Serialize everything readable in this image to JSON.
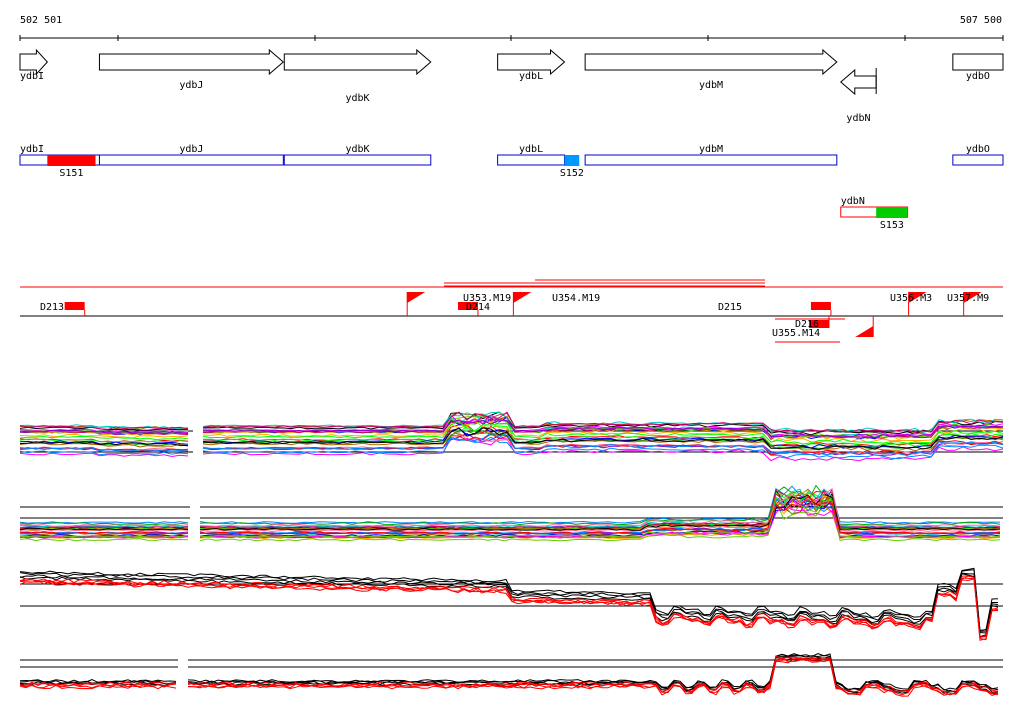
{
  "ruler": {
    "start_label": "502 501",
    "end_label": "507 500",
    "start": 502501,
    "end": 507500
  },
  "colors": {
    "gene_outline": "#000000",
    "box_outline": "#0000cc",
    "fill_red": "#ff0000",
    "fill_blue": "#0099ff",
    "fill_green": "#00cc00",
    "line_red": "#ff0000"
  },
  "genes": [
    {
      "name": "ydbI",
      "strand": "+",
      "start": 502501,
      "end": 502640
    },
    {
      "name": "ydbJ",
      "strand": "+",
      "start": 502905,
      "end": 503840
    },
    {
      "name": "ydbK",
      "strand": "+",
      "start": 503845,
      "end": 504590
    },
    {
      "name": "ydbL",
      "strand": "+",
      "start": 504930,
      "end": 505270
    },
    {
      "name": "ydbM",
      "strand": "+",
      "start": 505375,
      "end": 506655
    },
    {
      "name": "ydbN",
      "strand": "-",
      "start": 506675,
      "end": 506855
    },
    {
      "name": "ydbO",
      "strand": "+",
      "start": 507245,
      "end": 507500
    }
  ],
  "boxes": [
    {
      "name": "ydbI",
      "row": 0,
      "start": 502501,
      "end": 502905
    },
    {
      "name": "ydbJ",
      "row": 0,
      "start": 502905,
      "end": 503840
    },
    {
      "name": "ydbK",
      "row": 0,
      "start": 503845,
      "end": 504590
    },
    {
      "name": "ydbL",
      "row": 0,
      "start": 504930,
      "end": 505270
    },
    {
      "name": "ydbM",
      "row": 0,
      "start": 505375,
      "end": 506655
    },
    {
      "name": "ydbO",
      "row": 0,
      "start": 507245,
      "end": 507500
    },
    {
      "name": "ydbN",
      "row": 1,
      "start": 506675,
      "end": 507015
    }
  ],
  "segments": [
    {
      "name": "S151",
      "row": 0,
      "start": 502640,
      "end": 502885,
      "color": "#ff0000"
    },
    {
      "name": "S152",
      "row": 0,
      "start": 505270,
      "end": 505345,
      "color": "#0099ff"
    },
    {
      "name": "S153",
      "row": 1,
      "start": 506855,
      "end": 507015,
      "color": "#00cc00"
    }
  ],
  "features": [
    {
      "name": "D213",
      "kind": "down",
      "start": 502735,
      "end": 502830
    },
    {
      "name": "U353.M19",
      "kind": "up",
      "start": 504470,
      "end": 504830
    },
    {
      "name": "D214",
      "kind": "down",
      "start": 504730,
      "end": 504830
    },
    {
      "name": "U354.M19",
      "kind": "up",
      "start": 505010,
      "end": 505115
    },
    {
      "name": "D215",
      "kind": "down",
      "start": 506520,
      "end": 506625
    },
    {
      "name": "D216",
      "kind": "down",
      "start": 506535,
      "end": 506615
    },
    {
      "name": "U355.M14",
      "kind": "up",
      "start": 506750,
      "end": 506840
    },
    {
      "name": "U356.M3",
      "kind": "up",
      "start": 507020,
      "end": 507110
    },
    {
      "name": "U357.M9",
      "kind": "up",
      "start": 507300,
      "end": 507395
    }
  ]
}
